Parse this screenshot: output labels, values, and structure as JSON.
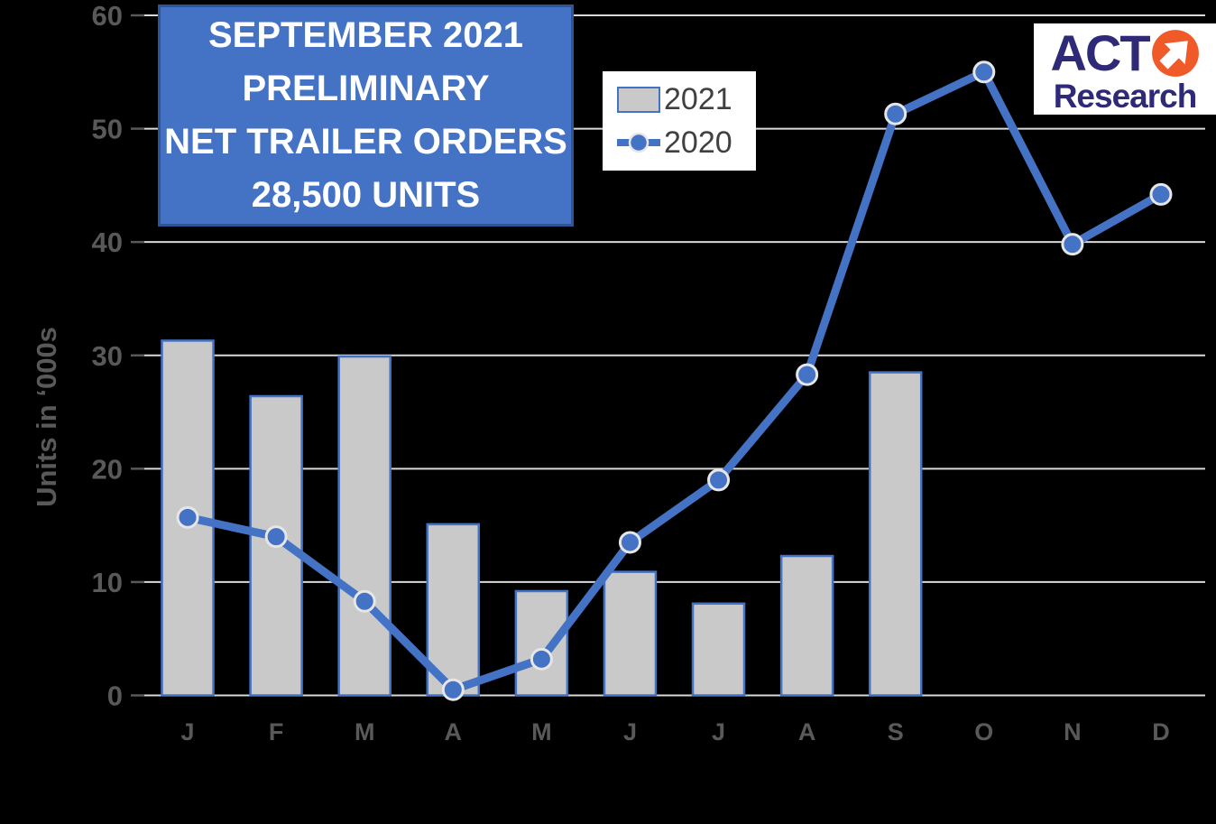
{
  "background": "#000000",
  "title_box": {
    "lines": [
      "SEPTEMBER 2021",
      "PRELIMINARY",
      "NET TRAILER ORDERS",
      "28,500 UNITS"
    ],
    "bg": "#4472C4",
    "border": "#2F5597",
    "text_color": "#FFFFFF"
  },
  "legend": {
    "bg": "#FFFFFF",
    "text_color": "#404040",
    "items": [
      {
        "label": "2021",
        "type": "bar",
        "swatch_fill": "#C9C9C9",
        "swatch_border": "#4472C4"
      },
      {
        "label": "2020",
        "type": "line",
        "color": "#4472C4",
        "marker_edge": "#E7E6E6"
      }
    ]
  },
  "logo": {
    "line1": "ACT",
    "line2": "Research",
    "navy": "#2E2A78",
    "orange": "#F05A28",
    "bg": "#FFFFFF",
    "icon": "northeast-arrow-icon"
  },
  "chart_data": {
    "type": "bar+line",
    "title": "SEPTEMBER 2021 PRELIMINARY NET TRAILER ORDERS 28,500 UNITS",
    "ylabel": "Units in ‘000s",
    "xlabel": "",
    "categories": [
      "J",
      "F",
      "M",
      "A",
      "M",
      "J",
      "J",
      "A",
      "S",
      "O",
      "N",
      "D"
    ],
    "series": [
      {
        "name": "2021",
        "type": "bar",
        "values": [
          31.3,
          26.4,
          29.9,
          15.1,
          9.2,
          10.9,
          8.1,
          12.3,
          28.5
        ],
        "fill": "#C9C9C9",
        "border": "#4472C4"
      },
      {
        "name": "2020",
        "type": "line",
        "values": [
          15.7,
          14.0,
          8.3,
          0.5,
          3.2,
          13.5,
          19.0,
          28.3,
          51.3,
          55.0,
          39.8,
          44.2
        ],
        "color": "#4472C4",
        "marker_edge": "#E7E6E6"
      }
    ],
    "ylim": [
      0,
      60
    ],
    "yticks": [
      0,
      10,
      20,
      30,
      40,
      50,
      60
    ],
    "grid": true,
    "gridline_color": "#D9D9D9",
    "axis_text_color": "#595959",
    "legend_position": "top-left-inside"
  }
}
